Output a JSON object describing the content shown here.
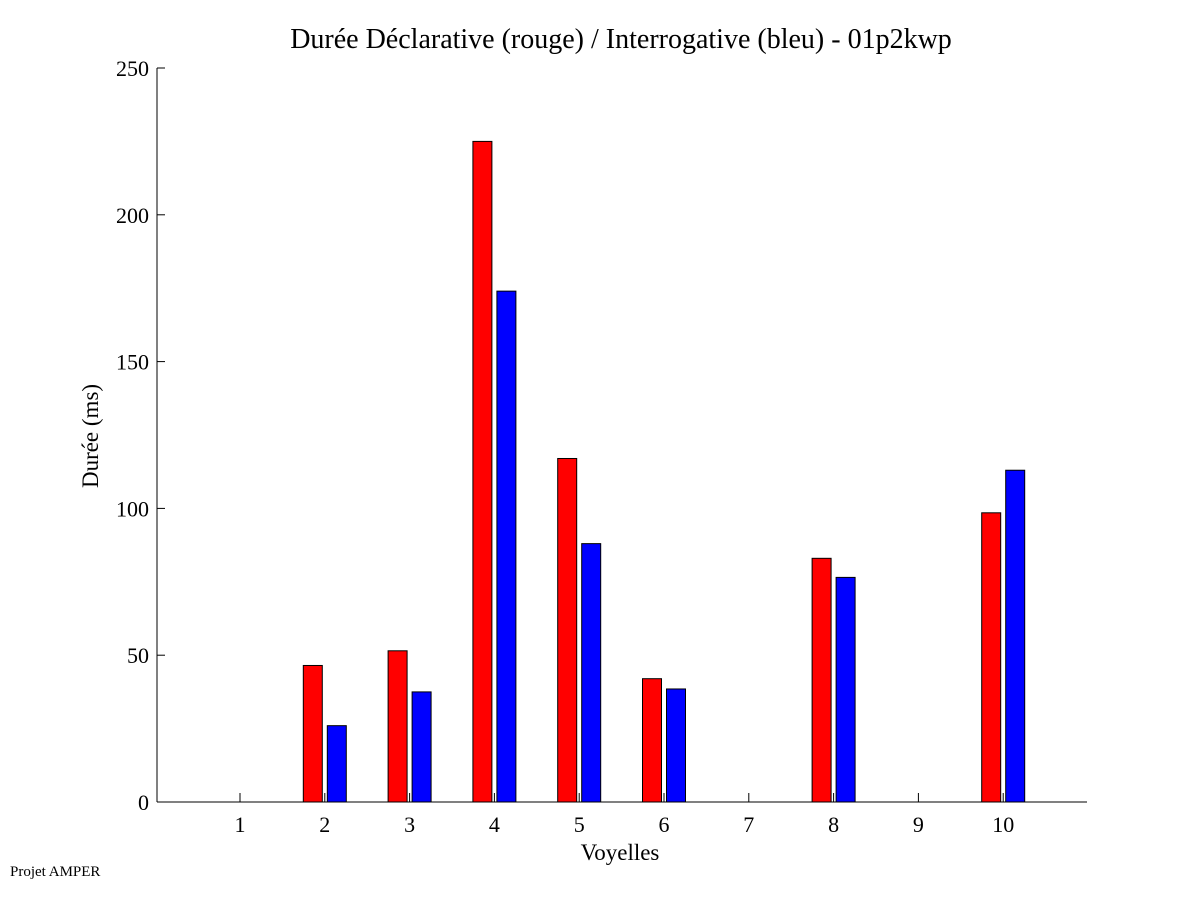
{
  "footer": "Projet AMPER",
  "chart_data": {
    "type": "bar",
    "title": "Durée Déclarative (rouge) / Interrogative (bleu) - 01p2kwp",
    "xlabel": "Voyelles",
    "ylabel": "Durée (ms)",
    "categories": [
      "1",
      "2",
      "3",
      "4",
      "5",
      "6",
      "7",
      "8",
      "9",
      "10"
    ],
    "ylim": [
      0,
      250
    ],
    "yticks": [
      0,
      50,
      100,
      150,
      200,
      250
    ],
    "grid": false,
    "series": [
      {
        "name": "",
        "color": "#ff0000",
        "values": [
          0,
          46.5,
          51.5,
          225,
          117,
          42,
          0,
          83,
          0,
          98.5
        ]
      },
      {
        "name": "",
        "color": "#0000ff",
        "values": [
          0,
          26,
          37.5,
          174,
          88,
          38.5,
          0,
          76.5,
          0,
          113
        ]
      }
    ]
  }
}
